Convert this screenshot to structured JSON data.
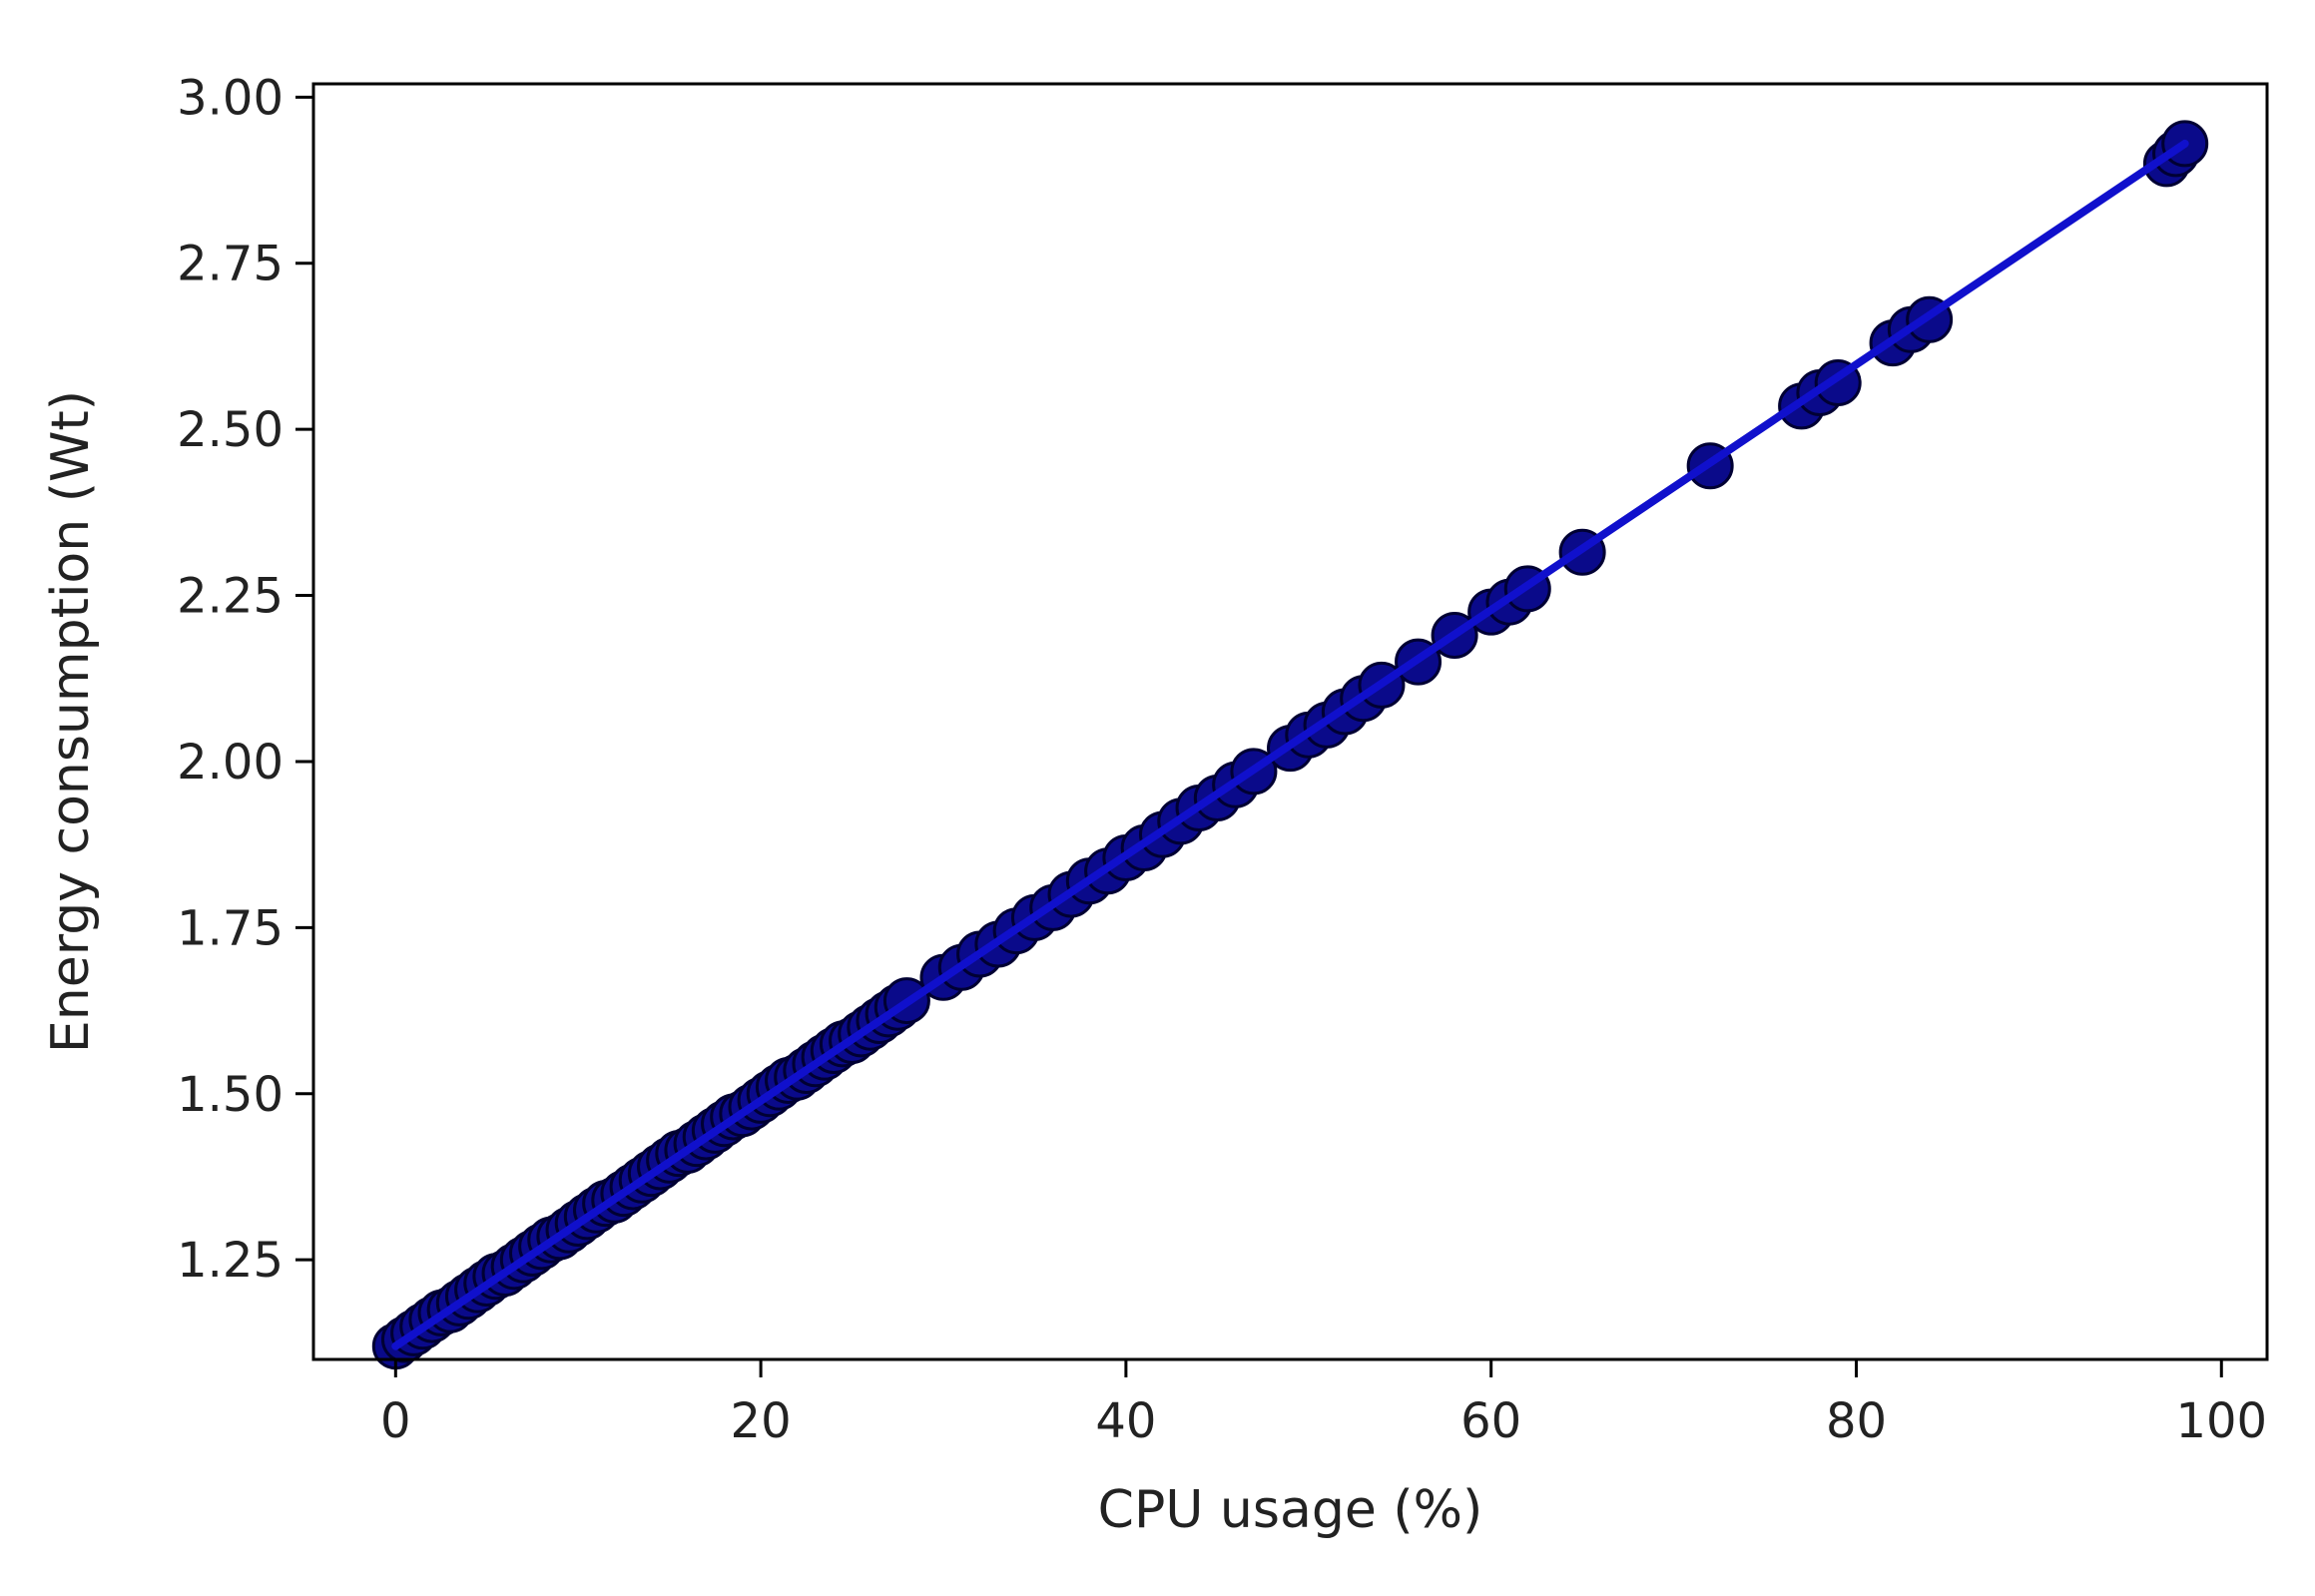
{
  "chart_data": {
    "type": "scatter",
    "title": "",
    "xlabel": "CPU usage (%)",
    "ylabel": "Energy consumption (Wt)",
    "xlim": [
      -4.5,
      102.5
    ],
    "ylim": [
      1.1,
      3.02
    ],
    "x_ticks": [
      0,
      20,
      40,
      60,
      80,
      100
    ],
    "y_ticks": [
      1.25,
      1.5,
      1.75,
      2.0,
      2.25,
      2.5,
      2.75,
      3.0
    ],
    "x_tick_labels": [
      "0",
      "20",
      "40",
      "60",
      "80",
      "100"
    ],
    "y_tick_labels": [
      "1.25",
      "1.50",
      "1.75",
      "2.00",
      "2.25",
      "2.50",
      "2.75",
      "3.00"
    ],
    "grid": false,
    "marker_color": "#0a0a8a",
    "marker_edge_color": "#000033",
    "line_color": "#1010cc",
    "fit_line": {
      "x": [
        0,
        98
      ],
      "y": [
        1.12,
        2.93
      ]
    },
    "series": [
      {
        "x": [
          0,
          0.5,
          1,
          1.5,
          2,
          2.5,
          3,
          3.5,
          4,
          4.5,
          5,
          5.5,
          6,
          6.5,
          7,
          7.5,
          8,
          8.5,
          9,
          9.5,
          10,
          10.5,
          11,
          11.5,
          12,
          12.5,
          13,
          13.5,
          14,
          14.5,
          15,
          15.5,
          16,
          16.5,
          17,
          17.5,
          18,
          18.5,
          19,
          19.5,
          20,
          20.5,
          21,
          21.5,
          22,
          22.5,
          23,
          23.5,
          24,
          24.5,
          25,
          25.5,
          26,
          26.5,
          27,
          27.5,
          28,
          30,
          31,
          32,
          33,
          34,
          35,
          36,
          37,
          38,
          39,
          40,
          41,
          42,
          43,
          44,
          45,
          46,
          47,
          49,
          50,
          51,
          52,
          53,
          54,
          56,
          58,
          60,
          61,
          62,
          65,
          72,
          77,
          78,
          79,
          82,
          83,
          84,
          97,
          97.5,
          98
        ],
        "y": [
          1.12,
          1.13,
          1.14,
          1.15,
          1.16,
          1.17,
          1.175,
          1.185,
          1.195,
          1.205,
          1.215,
          1.225,
          1.23,
          1.24,
          1.25,
          1.26,
          1.27,
          1.28,
          1.285,
          1.295,
          1.305,
          1.315,
          1.325,
          1.335,
          1.34,
          1.35,
          1.36,
          1.37,
          1.38,
          1.39,
          1.4,
          1.41,
          1.415,
          1.425,
          1.435,
          1.445,
          1.455,
          1.465,
          1.47,
          1.48,
          1.49,
          1.5,
          1.51,
          1.52,
          1.525,
          1.535,
          1.545,
          1.555,
          1.565,
          1.575,
          1.58,
          1.59,
          1.6,
          1.61,
          1.62,
          1.63,
          1.64,
          1.675,
          1.69,
          1.71,
          1.725,
          1.745,
          1.765,
          1.78,
          1.8,
          1.82,
          1.835,
          1.855,
          1.87,
          1.89,
          1.91,
          1.93,
          1.945,
          1.965,
          1.985,
          2.02,
          2.04,
          2.055,
          2.075,
          2.095,
          2.115,
          2.15,
          2.19,
          2.225,
          2.24,
          2.26,
          2.315,
          2.445,
          2.535,
          2.555,
          2.57,
          2.63,
          2.65,
          2.665,
          2.9,
          2.915,
          2.93
        ]
      }
    ]
  }
}
